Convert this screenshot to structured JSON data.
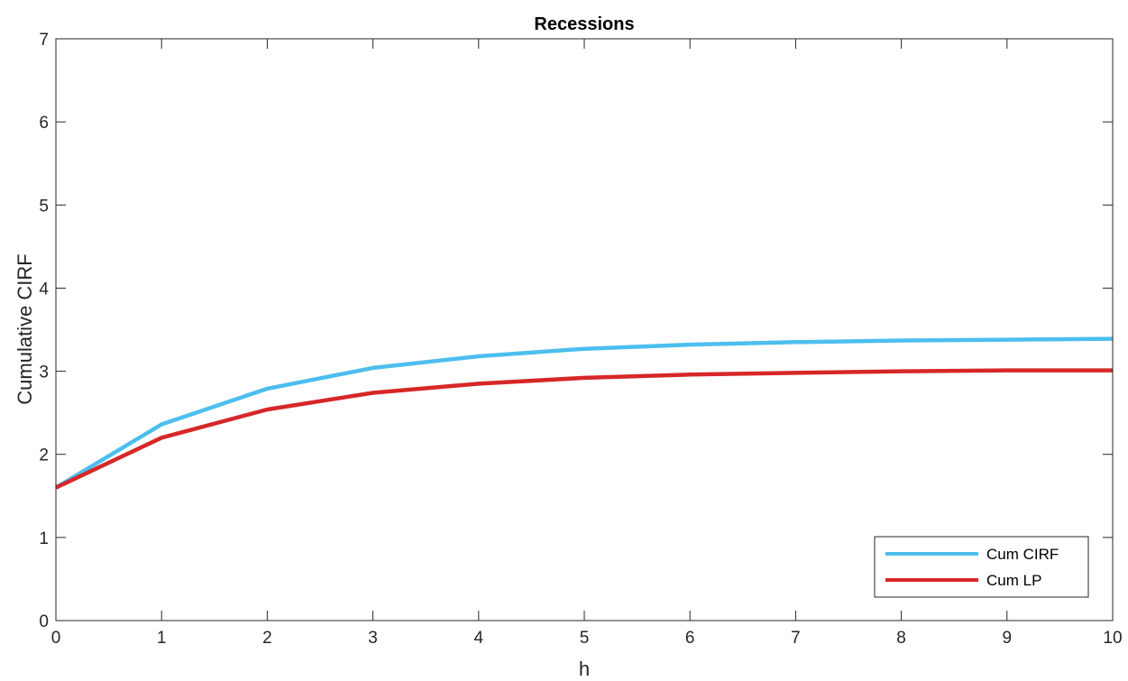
{
  "chart_data": {
    "type": "line",
    "title": "Recessions",
    "xlabel": "h",
    "ylabel": "Cumulative CIRF",
    "xlim": [
      0,
      10
    ],
    "ylim": [
      0,
      7
    ],
    "x_ticks": [
      "0",
      "1",
      "2",
      "3",
      "4",
      "5",
      "6",
      "7",
      "8",
      "9",
      "10"
    ],
    "y_ticks": [
      "0",
      "1",
      "2",
      "3",
      "4",
      "5",
      "6",
      "7"
    ],
    "grid": false,
    "legend_position": "bottom-right",
    "x": [
      0,
      1,
      2,
      3,
      4,
      5,
      6,
      7,
      8,
      9,
      10
    ],
    "series": [
      {
        "name": "Cum CIRF",
        "color": "#4DBEEE",
        "values": [
          1.6,
          2.36,
          2.79,
          3.04,
          3.18,
          3.27,
          3.32,
          3.35,
          3.37,
          3.38,
          3.39
        ]
      },
      {
        "name": "Cum LP",
        "color": "#D62728",
        "values": [
          1.6,
          2.2,
          2.54,
          2.74,
          2.85,
          2.92,
          2.96,
          2.98,
          3.0,
          3.01,
          3.01
        ]
      }
    ]
  }
}
